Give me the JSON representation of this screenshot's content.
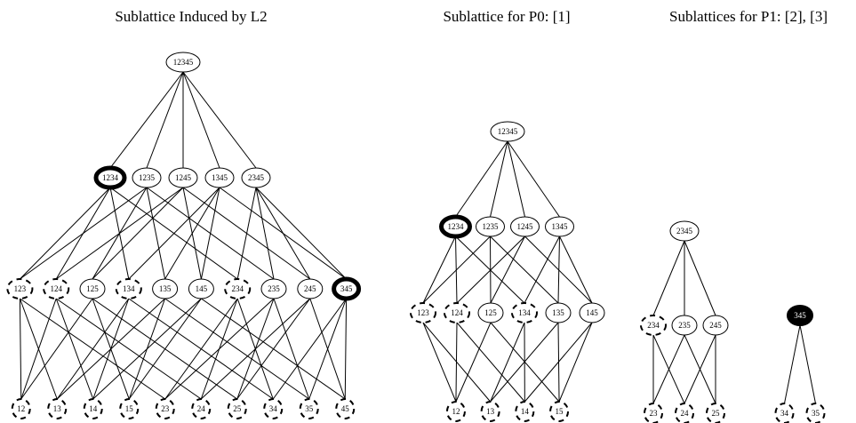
{
  "panels": [
    {
      "title": "Sublattice Induced by L2",
      "lattices": [
        {
          "levels": [
            [
              {
                "label": "12345",
                "style": "normal"
              }
            ],
            [
              {
                "label": "1234",
                "style": "bold"
              },
              {
                "label": "1235",
                "style": "normal"
              },
              {
                "label": "1245",
                "style": "normal"
              },
              {
                "label": "1345",
                "style": "normal"
              },
              {
                "label": "2345",
                "style": "normal"
              }
            ],
            [
              {
                "label": "123",
                "style": "dashed"
              },
              {
                "label": "124",
                "style": "dashed"
              },
              {
                "label": "125",
                "style": "normal"
              },
              {
                "label": "134",
                "style": "dashed"
              },
              {
                "label": "135",
                "style": "normal"
              },
              {
                "label": "145",
                "style": "normal"
              },
              {
                "label": "234",
                "style": "dashed"
              },
              {
                "label": "235",
                "style": "normal"
              },
              {
                "label": "245",
                "style": "normal"
              },
              {
                "label": "345",
                "style": "bold"
              }
            ],
            [
              {
                "label": "12",
                "style": "dashed"
              },
              {
                "label": "13",
                "style": "dashed"
              },
              {
                "label": "14",
                "style": "dashed"
              },
              {
                "label": "15",
                "style": "dashed"
              },
              {
                "label": "23",
                "style": "dashed"
              },
              {
                "label": "24",
                "style": "dashed"
              },
              {
                "label": "25",
                "style": "dashed"
              },
              {
                "label": "34",
                "style": "dashed"
              },
              {
                "label": "35",
                "style": "dashed"
              },
              {
                "label": "45",
                "style": "dashed"
              }
            ]
          ]
        }
      ]
    },
    {
      "title": "Sublattice for P0: [1]",
      "lattices": [
        {
          "levels": [
            [
              {
                "label": "12345",
                "style": "normal"
              }
            ],
            [
              {
                "label": "1234",
                "style": "bold"
              },
              {
                "label": "1235",
                "style": "normal"
              },
              {
                "label": "1245",
                "style": "normal"
              },
              {
                "label": "1345",
                "style": "normal"
              }
            ],
            [
              {
                "label": "123",
                "style": "dashed"
              },
              {
                "label": "124",
                "style": "dashed"
              },
              {
                "label": "125",
                "style": "normal"
              },
              {
                "label": "134",
                "style": "dashed"
              },
              {
                "label": "135",
                "style": "normal"
              },
              {
                "label": "145",
                "style": "normal"
              }
            ],
            [
              {
                "label": "12",
                "style": "dashed"
              },
              {
                "label": "13",
                "style": "dashed"
              },
              {
                "label": "14",
                "style": "dashed"
              },
              {
                "label": "15",
                "style": "dashed"
              }
            ]
          ]
        }
      ]
    },
    {
      "title": "Sublattices for P1: [2], [3]",
      "lattices": [
        {
          "levels": [
            [
              {
                "label": "2345",
                "style": "normal"
              }
            ],
            [
              {
                "label": "234",
                "style": "dashed"
              },
              {
                "label": "235",
                "style": "normal"
              },
              {
                "label": "245",
                "style": "normal"
              }
            ],
            [
              {
                "label": "23",
                "style": "dashed"
              },
              {
                "label": "24",
                "style": "dashed"
              },
              {
                "label": "25",
                "style": "dashed"
              }
            ]
          ]
        },
        {
          "levels": [
            [
              {
                "label": "345",
                "style": "filled"
              }
            ],
            [
              {
                "label": "34",
                "style": "dashed"
              },
              {
                "label": "35",
                "style": "dashed"
              }
            ]
          ]
        }
      ]
    }
  ]
}
